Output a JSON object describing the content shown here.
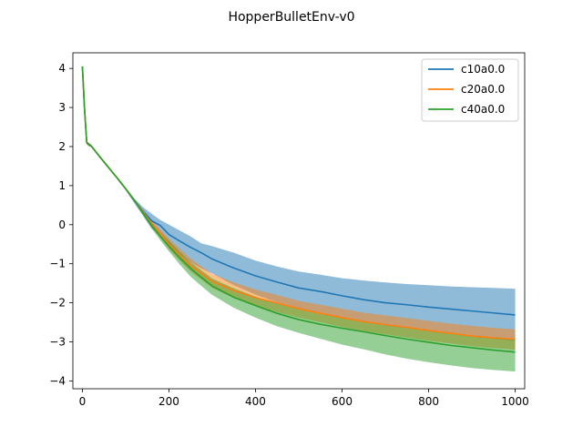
{
  "chart_data": {
    "type": "line",
    "title": "HopperBulletEnv-v0",
    "xlabel": "",
    "ylabel": "",
    "xlim": [
      -22,
      1022
    ],
    "ylim": [
      -4.2,
      4.4
    ],
    "xticks": [
      0,
      200,
      400,
      600,
      800,
      1000
    ],
    "yticks": [
      -4,
      -3,
      -2,
      -1,
      0,
      1,
      2,
      3,
      4
    ],
    "legend_position": "top-right",
    "x": [
      0,
      5,
      10,
      15,
      20,
      40,
      60,
      80,
      100,
      120,
      140,
      160,
      180,
      200,
      225,
      250,
      275,
      300,
      350,
      400,
      450,
      500,
      550,
      600,
      650,
      700,
      750,
      800,
      850,
      900,
      950,
      1000
    ],
    "series": [
      {
        "name": "c10a0.0",
        "color": "#1f77b4",
        "band_opacity": 0.5,
        "mean": [
          4.05,
          2.95,
          2.1,
          2.05,
          2.02,
          1.74,
          1.47,
          1.2,
          0.92,
          0.62,
          0.35,
          0.1,
          -0.02,
          -0.25,
          -0.42,
          -0.58,
          -0.72,
          -0.88,
          -1.11,
          -1.31,
          -1.47,
          -1.62,
          -1.71,
          -1.82,
          -1.92,
          -2.0,
          -2.05,
          -2.11,
          -2.16,
          -2.21,
          -2.26,
          -2.31
        ],
        "upper": [
          4.1,
          2.99,
          2.14,
          2.09,
          2.05,
          1.77,
          1.5,
          1.23,
          0.95,
          0.67,
          0.45,
          0.28,
          0.12,
          0.0,
          -0.15,
          -0.3,
          -0.48,
          -0.55,
          -0.72,
          -0.92,
          -1.07,
          -1.2,
          -1.28,
          -1.37,
          -1.43,
          -1.48,
          -1.52,
          -1.55,
          -1.58,
          -1.6,
          -1.62,
          -1.64
        ],
        "lower": [
          4.0,
          2.9,
          2.06,
          2.01,
          1.99,
          1.71,
          1.44,
          1.17,
          0.88,
          0.55,
          0.23,
          -0.1,
          -0.25,
          -0.48,
          -0.75,
          -0.97,
          -1.12,
          -1.25,
          -1.55,
          -1.79,
          -1.99,
          -2.14,
          -2.28,
          -2.38,
          -2.48,
          -2.58,
          -2.65,
          -2.72,
          -2.8,
          -2.87,
          -2.92,
          -2.97
        ]
      },
      {
        "name": "c20a0.0",
        "color": "#ff7f0e",
        "band_opacity": 0.5,
        "mean": [
          4.05,
          2.95,
          2.1,
          2.05,
          2.02,
          1.74,
          1.47,
          1.2,
          0.92,
          0.62,
          0.33,
          0.02,
          -0.22,
          -0.5,
          -0.78,
          -1.05,
          -1.25,
          -1.45,
          -1.69,
          -1.87,
          -2.01,
          -2.15,
          -2.27,
          -2.38,
          -2.48,
          -2.56,
          -2.63,
          -2.71,
          -2.78,
          -2.85,
          -2.9,
          -2.93
        ],
        "upper": [
          4.1,
          2.99,
          2.14,
          2.09,
          2.05,
          1.77,
          1.5,
          1.23,
          0.95,
          0.66,
          0.38,
          0.1,
          -0.13,
          -0.36,
          -0.62,
          -0.87,
          -1.07,
          -1.26,
          -1.48,
          -1.66,
          -1.8,
          -1.95,
          -2.05,
          -2.15,
          -2.25,
          -2.32,
          -2.39,
          -2.46,
          -2.53,
          -2.59,
          -2.64,
          -2.68
        ],
        "lower": [
          4.0,
          2.9,
          2.06,
          2.01,
          1.99,
          1.71,
          1.44,
          1.17,
          0.89,
          0.58,
          0.28,
          -0.06,
          -0.32,
          -0.63,
          -0.92,
          -1.2,
          -1.41,
          -1.62,
          -1.88,
          -2.08,
          -2.24,
          -2.38,
          -2.5,
          -2.62,
          -2.72,
          -2.81,
          -2.89,
          -2.97,
          -3.04,
          -3.11,
          -3.16,
          -3.2
        ]
      },
      {
        "name": "c40a0.0",
        "color": "#2ca02c",
        "band_opacity": 0.5,
        "mean": [
          4.05,
          2.95,
          2.1,
          2.05,
          2.02,
          1.74,
          1.47,
          1.2,
          0.92,
          0.62,
          0.3,
          -0.02,
          -0.3,
          -0.55,
          -0.85,
          -1.12,
          -1.35,
          -1.57,
          -1.86,
          -2.07,
          -2.27,
          -2.43,
          -2.55,
          -2.65,
          -2.74,
          -2.84,
          -2.93,
          -3.01,
          -3.09,
          -3.15,
          -3.21,
          -3.26
        ],
        "upper": [
          4.1,
          2.99,
          2.14,
          2.09,
          2.05,
          1.77,
          1.5,
          1.23,
          0.95,
          0.66,
          0.36,
          0.05,
          -0.2,
          -0.42,
          -0.7,
          -0.97,
          -1.17,
          -1.38,
          -1.63,
          -1.84,
          -2.02,
          -2.17,
          -2.29,
          -2.39,
          -2.48,
          -2.57,
          -2.65,
          -2.72,
          -2.79,
          -2.85,
          -2.9,
          -2.94
        ],
        "lower": [
          4.0,
          2.9,
          2.06,
          2.01,
          1.99,
          1.71,
          1.44,
          1.17,
          0.89,
          0.58,
          0.24,
          -0.1,
          -0.4,
          -0.68,
          -1.02,
          -1.33,
          -1.57,
          -1.8,
          -2.13,
          -2.38,
          -2.6,
          -2.77,
          -2.92,
          -3.07,
          -3.19,
          -3.32,
          -3.43,
          -3.52,
          -3.6,
          -3.67,
          -3.72,
          -3.76
        ]
      }
    ]
  }
}
